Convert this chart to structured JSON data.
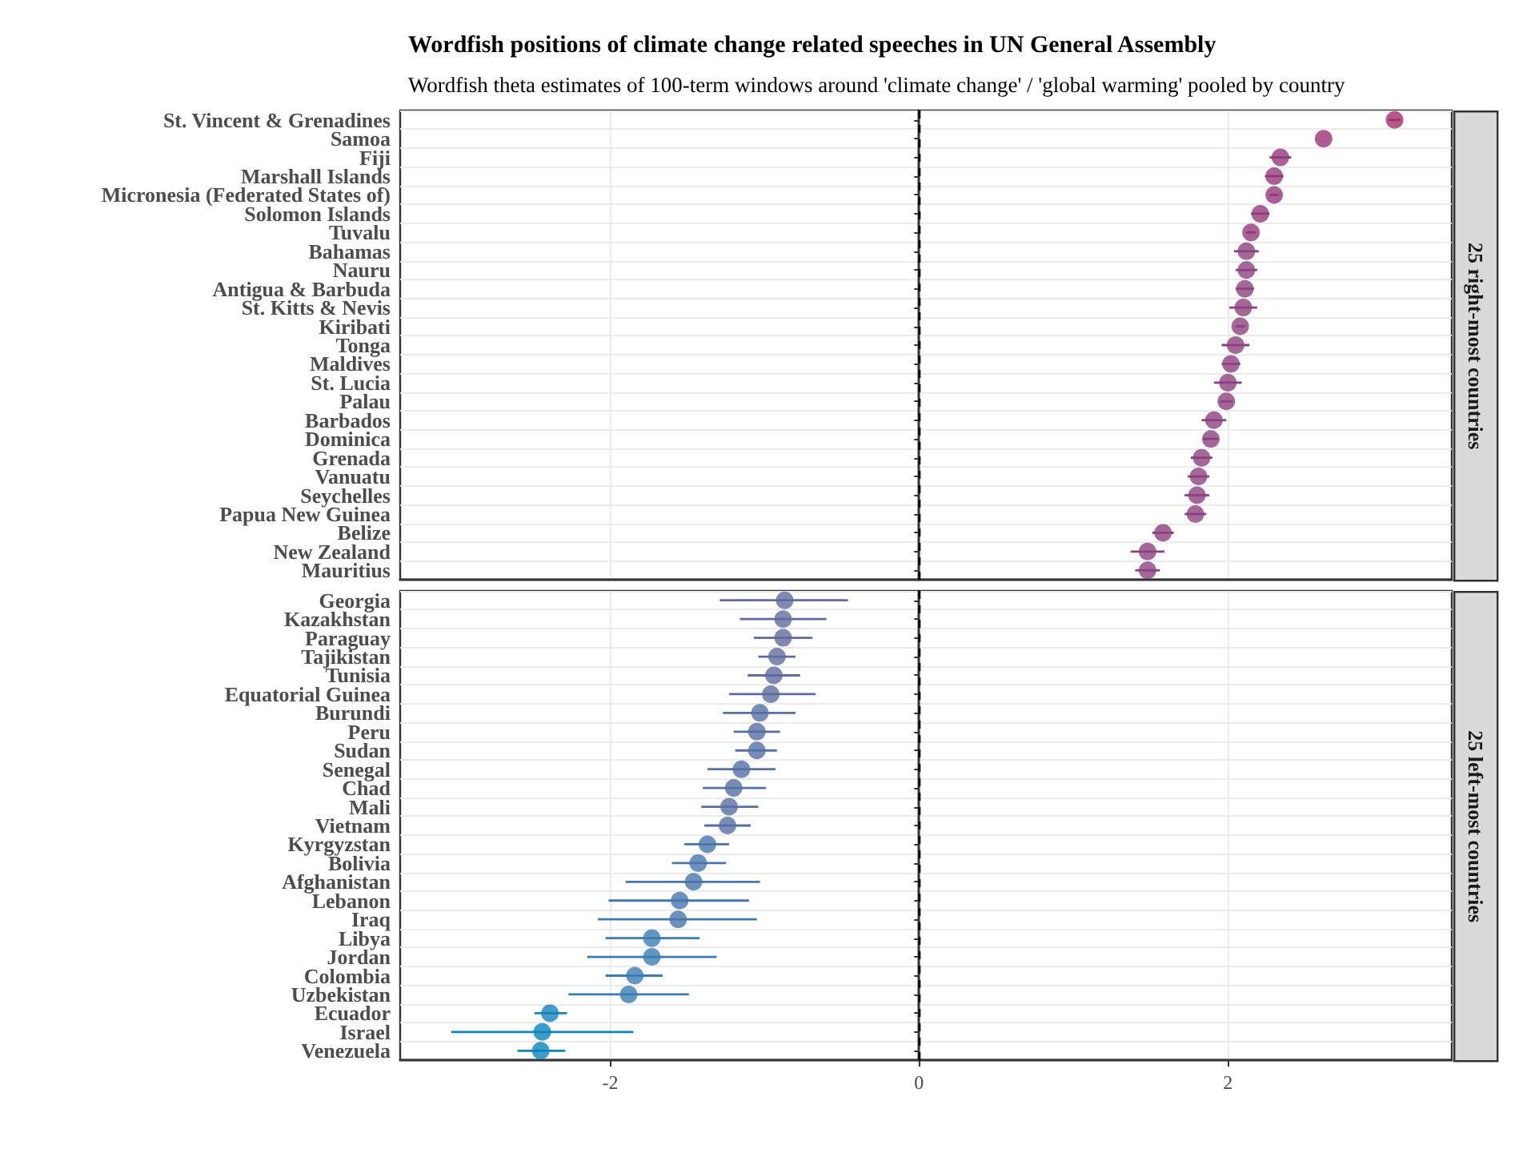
{
  "chart_data": [
    {
      "type": "scatter",
      "orientation": "horizontal",
      "title": "Wordfish positions of climate change related speeches in UN General Assembly",
      "subtitle": "Wordfish theta estimates of 100-term windows around 'climate change' / 'global warming' pooled by country",
      "annotations": [
        "25 right-most countries"
      ],
      "categories": [
        "St. Vincent & Grenadines",
        "Samoa",
        "Fiji",
        "Marshall Islands",
        "Micronesia (Federated States of)",
        "Solomon Islands",
        "Tuvalu",
        "Bahamas",
        "Nauru",
        "Antigua & Barbuda",
        "St. Kitts & Nevis",
        "Kiribati",
        "Tonga",
        "Maldives",
        "St. Lucia",
        "Palau",
        "Barbados",
        "Dominica",
        "Grenada",
        "Vanuatu",
        "Seychelles",
        "Papua New Guinea",
        "Belize",
        "New Zealand",
        "Mauritius"
      ],
      "values": [
        3.08,
        2.62,
        2.34,
        2.3,
        2.3,
        2.21,
        2.15,
        2.12,
        2.12,
        2.11,
        2.1,
        2.08,
        2.05,
        2.02,
        2.0,
        1.99,
        1.91,
        1.89,
        1.83,
        1.81,
        1.8,
        1.79,
        1.58,
        1.48,
        1.48
      ],
      "errors": [
        [
          3.04,
          3.12
        ],
        null,
        [
          2.27,
          2.41
        ],
        [
          2.24,
          2.36
        ],
        [
          2.27,
          2.33
        ],
        [
          2.15,
          2.27
        ],
        [
          2.12,
          2.18
        ],
        [
          2.04,
          2.2
        ],
        [
          2.05,
          2.19
        ],
        [
          2.05,
          2.17
        ],
        [
          2.01,
          2.19
        ],
        [
          2.05,
          2.11
        ],
        [
          1.96,
          2.14
        ],
        [
          1.96,
          2.08
        ],
        [
          1.91,
          2.09
        ],
        [
          1.95,
          2.03
        ],
        [
          1.83,
          1.99
        ],
        [
          1.84,
          1.94
        ],
        [
          1.76,
          1.9
        ],
        [
          1.74,
          1.88
        ],
        [
          1.72,
          1.88
        ],
        [
          1.72,
          1.86
        ],
        [
          1.51,
          1.65
        ],
        [
          1.37,
          1.59
        ],
        [
          1.4,
          1.56
        ]
      ],
      "colors": [
        "#a3306c",
        "#9a3574",
        "#933a78",
        "#933a78",
        "#933a78",
        "#933a78",
        "#933a78",
        "#8c417e",
        "#8c417e",
        "#8c417e",
        "#8c417e",
        "#8c417e",
        "#8c417e",
        "#8c417e",
        "#8c417e",
        "#8c417e",
        "#8c417e",
        "#8c417e",
        "#8c417e",
        "#8c417e",
        "#8c417e",
        "#8c417e",
        "#8c417e",
        "#8c417e",
        "#8c417e"
      ],
      "xlim": [
        -3.36,
        3.45
      ],
      "xticks": [
        -2,
        0,
        2
      ],
      "tick_labels": "y",
      "grid": true,
      "marker": "circle",
      "ref_lines": [
        {
          "axis": "x",
          "value": 0,
          "line_style": "dashed",
          "color": "#000000"
        }
      ]
    },
    {
      "type": "scatter",
      "orientation": "horizontal",
      "annotations": [
        "25 left-most countries"
      ],
      "categories": [
        "Georgia",
        "Kazakhstan",
        "Paraguay",
        "Tajikistan",
        "Tunisia",
        "Equatorial Guinea",
        "Burundi",
        "Peru",
        "Sudan",
        "Senegal",
        "Chad",
        "Mali",
        "Vietnam",
        "Kyrgyzstan",
        "Bolivia",
        "Afghanistan",
        "Lebanon",
        "Iraq",
        "Libya",
        "Jordan",
        "Colombia",
        "Uzbekistan",
        "Ecuador",
        "Israel",
        "Venezuela"
      ],
      "values": [
        -0.87,
        -0.88,
        -0.88,
        -0.92,
        -0.94,
        -0.96,
        -1.03,
        -1.05,
        -1.05,
        -1.15,
        -1.2,
        -1.23,
        -1.24,
        -1.37,
        -1.43,
        -1.46,
        -1.55,
        -1.56,
        -1.73,
        -1.73,
        -1.84,
        -1.88,
        -2.39,
        -2.44,
        -2.45
      ],
      "errors": [
        [
          -1.29,
          -0.46
        ],
        [
          -1.16,
          -0.6
        ],
        [
          -1.07,
          -0.69
        ],
        [
          -1.04,
          -0.8
        ],
        [
          -1.11,
          -0.77
        ],
        [
          -1.23,
          -0.67
        ],
        [
          -1.27,
          -0.8
        ],
        [
          -1.2,
          -0.9
        ],
        [
          -1.19,
          -0.92
        ],
        [
          -1.37,
          -0.93
        ],
        [
          -1.4,
          -0.99
        ],
        [
          -1.41,
          -1.04
        ],
        [
          -1.39,
          -1.09
        ],
        [
          -1.52,
          -1.23
        ],
        [
          -1.6,
          -1.25
        ],
        [
          -1.9,
          -1.03
        ],
        [
          -2.01,
          -1.1
        ],
        [
          -2.08,
          -1.05
        ],
        [
          -2.03,
          -1.42
        ],
        [
          -2.15,
          -1.31
        ],
        [
          -2.03,
          -1.66
        ],
        [
          -2.27,
          -1.49
        ],
        [
          -2.49,
          -2.28
        ],
        [
          -3.03,
          -1.85
        ],
        [
          -2.6,
          -2.29
        ]
      ],
      "colors": [
        "#5f6b9f",
        "#5f6b9f",
        "#5f6b9f",
        "#5f6b9f",
        "#5f6b9f",
        "#5f6b9f",
        "#5570a5",
        "#5570a5",
        "#5570a5",
        "#5570a5",
        "#5570a5",
        "#5570a5",
        "#5570a5",
        "#4676ab",
        "#4676ab",
        "#4676ab",
        "#4676ab",
        "#4676ab",
        "#3a7db2",
        "#3a7db2",
        "#3a7db2",
        "#3a7db2",
        "#1285ba",
        "#0a86bb",
        "#0a86bb"
      ],
      "xlim": [
        -3.36,
        3.45
      ],
      "xticks": [
        -2,
        0,
        2
      ],
      "grid": true,
      "marker": "circle",
      "ref_lines": [
        {
          "axis": "x",
          "value": 0,
          "line_style": "dashed",
          "color": "#000000"
        }
      ]
    }
  ]
}
